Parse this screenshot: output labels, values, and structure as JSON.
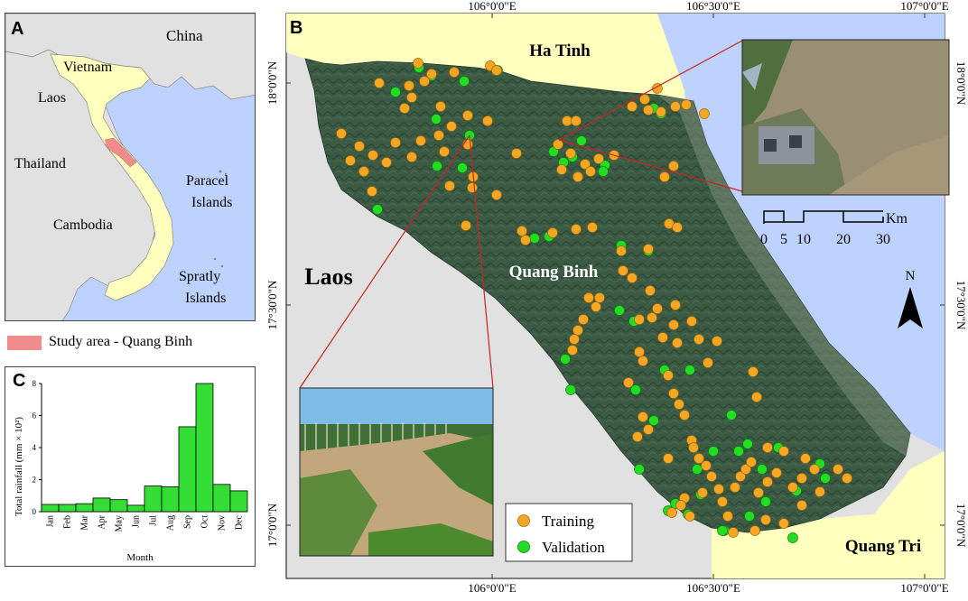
{
  "panel_a": {
    "label": "A",
    "places": [
      "China",
      "Vietnam",
      "Laos",
      "Thailand",
      "Cambodia",
      "Paracel",
      "Islands",
      "Spratly",
      "Islands"
    ],
    "legend_text": "Study area - Quang Binh",
    "colors": {
      "sea": "#bed2ff",
      "land": "#e1e1e1",
      "vietnam": "#ffffbe",
      "study": "#f08c8c"
    }
  },
  "panel_b": {
    "label": "B",
    "lon_labels": [
      "106°0'0\"E",
      "106°30'0\"E",
      "107°0'0\"E"
    ],
    "lat_labels": [
      "18°0'0\"N",
      "17°30'0\"N",
      "17°0'0\"N"
    ],
    "places": {
      "ha_tinh": "Ha Tinh",
      "laos": "Laos",
      "quang_binh": "Quang Binh",
      "quang_tri": "Quang Tri"
    },
    "scale": {
      "unit": "Km",
      "ticks": [
        "0",
        "5",
        "10",
        "20",
        "30"
      ]
    },
    "north": "N",
    "legend": [
      {
        "label": "Training",
        "color": "#f5a623"
      },
      {
        "label": "Validation",
        "color": "#22dd22"
      }
    ]
  },
  "panel_c": {
    "label": "C"
  },
  "chart_data": {
    "type": "bar",
    "categories": [
      "Jan",
      "Feb",
      "Mar",
      "Apr",
      "May",
      "Jun",
      "Jul",
      "Aug",
      "Sep",
      "Oct",
      "Nov",
      "Dec"
    ],
    "values": [
      0.45,
      0.45,
      0.5,
      0.85,
      0.75,
      0.4,
      1.6,
      1.55,
      5.3,
      8.0,
      1.7,
      1.3
    ],
    "xlabel": "Month",
    "ylabel": "Total rainfall (mm × 10²)",
    "yticks": [
      "0",
      "2",
      "4",
      "6",
      "8"
    ],
    "ylim": [
      0,
      8
    ],
    "color": "#33dd33"
  }
}
